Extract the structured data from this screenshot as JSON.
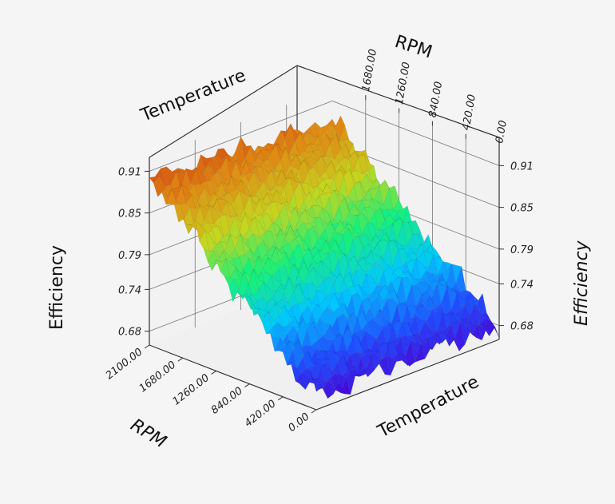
{
  "chart_data": {
    "type": "surface3d",
    "title": "",
    "x_axis": {
      "label": "Temperature",
      "ticks": []
    },
    "y_axis": {
      "label": "RPM",
      "ticks": [
        "0.00",
        "420.00",
        "840.00",
        "1260.00",
        "1680.00",
        "2100.00"
      ],
      "range": [
        0,
        2100
      ]
    },
    "z_axis": {
      "label": "Efficiency",
      "ticks": [
        "0.68",
        "0.74",
        "0.79",
        "0.85",
        "0.91"
      ],
      "range": [
        0.66,
        0.93
      ]
    },
    "back_rpm_ticks": [
      "0.00",
      "420.00",
      "840.00",
      "1260.00",
      "1680.00"
    ],
    "colormap": [
      "#4b00d6",
      "#1f4fff",
      "#00c8ff",
      "#18f07a",
      "#c6d61e",
      "#e08a14",
      "#d0300c"
    ],
    "grid": true,
    "samples": {
      "rpm": [
        0,
        420,
        840,
        1260,
        1680,
        2100
      ],
      "efficiency_high_temperature": [
        0.68,
        0.72,
        0.76,
        0.8,
        0.85,
        0.88
      ],
      "efficiency_low_temperature": [
        0.68,
        0.72,
        0.77,
        0.81,
        0.86,
        0.9
      ]
    }
  }
}
